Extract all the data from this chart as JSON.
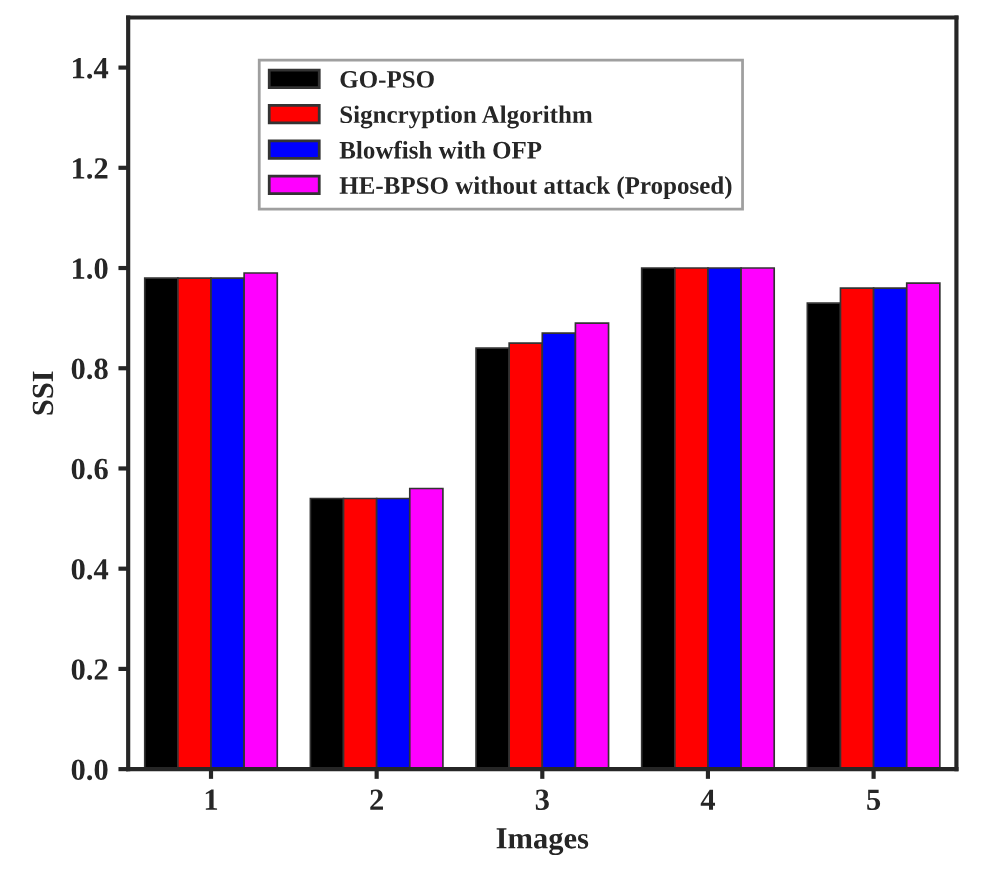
{
  "chart_data": {
    "type": "bar",
    "xlabel": "Images",
    "ylabel": "SSI",
    "categories": [
      "1",
      "2",
      "3",
      "4",
      "5"
    ],
    "series": [
      {
        "name": "GO-PSO",
        "color": "#000000",
        "values": [
          0.98,
          0.54,
          0.84,
          1.0,
          0.93
        ]
      },
      {
        "name": "Signcryption Algorithm",
        "color": "#ff0000",
        "values": [
          0.98,
          0.54,
          0.85,
          1.0,
          0.96
        ]
      },
      {
        "name": "Blowfish with OFP",
        "color": "#0000ff",
        "values": [
          0.98,
          0.54,
          0.87,
          1.0,
          0.96
        ]
      },
      {
        "name": "HE-BPSO without attack (Proposed)",
        "color": "#ff00ff",
        "values": [
          0.99,
          0.56,
          0.89,
          1.0,
          0.97
        ]
      }
    ],
    "ylim": [
      0,
      1.5
    ],
    "yticks": [
      {
        "value": 0.0,
        "label": "0.0"
      },
      {
        "value": 0.2,
        "label": "0.2"
      },
      {
        "value": 0.4,
        "label": "0.4"
      },
      {
        "value": 0.6,
        "label": "0.6"
      },
      {
        "value": 0.8,
        "label": "0.8"
      },
      {
        "value": 1.0,
        "label": "1.0"
      },
      {
        "value": 1.2,
        "label": "1.2"
      },
      {
        "value": 1.4,
        "label": "1.4"
      }
    ],
    "legend": "top",
    "grid": false
  }
}
